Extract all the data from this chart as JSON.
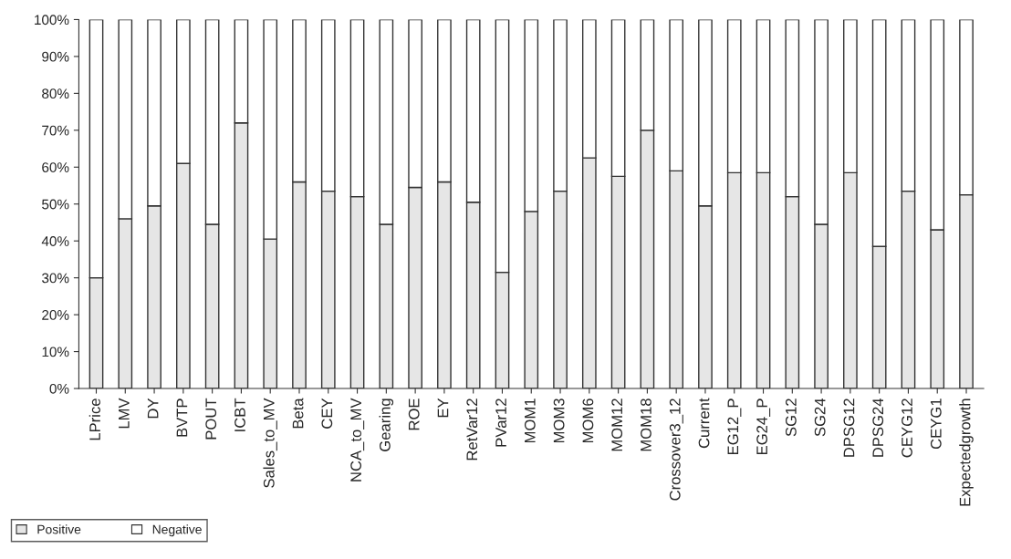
{
  "chart_data": {
    "type": "bar",
    "stacked": true,
    "categories": [
      "LPrice",
      "LMV",
      "DY",
      "BVTP",
      "POUT",
      "ICBT",
      "Sales_to_MV",
      "Beta",
      "CEY",
      "NCA_to_MV",
      "Gearing",
      "ROE",
      "EY",
      "RetVar12",
      "PVar12",
      "MOM1",
      "MOM3",
      "MOM6",
      "MOM12",
      "MOM18",
      "Crossover3_12",
      "Current",
      "EG12_P",
      "EG24_P",
      "SG12",
      "SG24",
      "DPSG12",
      "DPSG24",
      "CEYG12",
      "CEYG1",
      "Expectedgrowth"
    ],
    "series": [
      {
        "name": "Positive",
        "color": "#e6e6e6",
        "values": [
          30,
          46,
          49.5,
          61,
          44.5,
          72,
          40.5,
          56,
          53.5,
          52,
          44.5,
          54.5,
          56,
          50.5,
          31.5,
          48,
          53.5,
          62.5,
          57.5,
          70,
          59,
          49.5,
          58.5,
          58.5,
          52,
          44.5,
          58.5,
          38.5,
          53.5,
          43,
          52.5
        ]
      },
      {
        "name": "Negative",
        "color": "#ffffff",
        "values": [
          70,
          54,
          50.5,
          39,
          55.5,
          28,
          59.5,
          44,
          46.5,
          48,
          55.5,
          45.5,
          44,
          49.5,
          68.5,
          52,
          46.5,
          37.5,
          42.5,
          30,
          41,
          50.5,
          41.5,
          41.5,
          48,
          55.5,
          41.5,
          61.5,
          46.5,
          57,
          47.5
        ]
      }
    ],
    "ylim": [
      0,
      100
    ],
    "yticks": [
      {
        "value": 0,
        "label": "0%"
      },
      {
        "value": 10,
        "label": "10%"
      },
      {
        "value": 20,
        "label": "20%"
      },
      {
        "value": 30,
        "label": "30%"
      },
      {
        "value": 40,
        "label": "40%"
      },
      {
        "value": 50,
        "label": "50%"
      },
      {
        "value": 60,
        "label": "60%"
      },
      {
        "value": 70,
        "label": "70%"
      },
      {
        "value": 80,
        "label": "80%"
      },
      {
        "value": 90,
        "label": "90%"
      },
      {
        "value": 100,
        "label": "100%"
      }
    ],
    "legend": "bottom left",
    "grid": false
  }
}
